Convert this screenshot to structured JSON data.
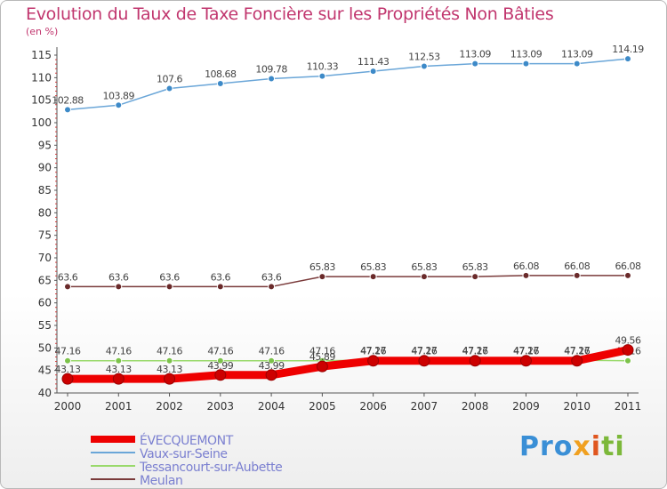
{
  "chart_data": {
    "type": "line",
    "title": "Evolution du Taux de Taxe Foncière sur les Propriétés Non Bâties",
    "ylabel": "(en %)",
    "xlabel": "",
    "categories": [
      "2000",
      "2001",
      "2002",
      "2003",
      "2004",
      "2005",
      "2006",
      "2007",
      "2008",
      "2009",
      "2010",
      "2011"
    ],
    "ylim": [
      40,
      115
    ],
    "yticks": [
      40,
      45,
      50,
      55,
      60,
      65,
      70,
      75,
      80,
      85,
      90,
      95,
      100,
      105,
      110,
      115
    ],
    "grid": false,
    "legend_position": "bottom-left",
    "series": [
      {
        "name": "Vaux-sur-Seine",
        "color": "#6aa6d8",
        "marker": "#3d8ac8",
        "values": [
          102.88,
          103.89,
          107.6,
          108.68,
          109.78,
          110.33,
          111.43,
          112.53,
          113.09,
          113.09,
          113.09,
          114.19
        ],
        "labels": [
          "102.88",
          "103.89",
          "107.6",
          "108.68",
          "109.78",
          "110.33",
          "111.43",
          "112.53",
          "113.09",
          "113.09",
          "113.09",
          "114.19"
        ]
      },
      {
        "name": "Meulan",
        "color": "#7a3a3a",
        "marker": "#6a2a2a",
        "values": [
          63.6,
          63.6,
          63.6,
          63.6,
          63.6,
          65.83,
          65.83,
          65.83,
          65.83,
          66.08,
          66.08,
          66.08
        ],
        "labels": [
          "63.6",
          "63.6",
          "63.6",
          "63.6",
          "63.6",
          "65.83",
          "65.83",
          "65.83",
          "65.83",
          "66.08",
          "66.08",
          "66.08"
        ]
      },
      {
        "name": "Tessancourt-sur-Aubette",
        "color": "#99d96b",
        "marker": "#7cc24a",
        "values": [
          47.16,
          47.16,
          47.16,
          47.16,
          47.16,
          47.16,
          47.27,
          47.27,
          47.27,
          47.27,
          47.27,
          47.16
        ],
        "labels": [
          "47.16",
          "47.16",
          "47.16",
          "47.16",
          "47.16",
          "47.16",
          "47.27",
          "47.27",
          "47.27",
          "47.27",
          "47.27",
          "47.16"
        ]
      },
      {
        "name": "ÉVECQUEMONT",
        "color": "#ee0000",
        "marker": "#cc0000",
        "values": [
          43.13,
          43.13,
          43.13,
          43.99,
          43.99,
          45.89,
          47.16,
          47.16,
          47.16,
          47.16,
          47.16,
          49.56
        ],
        "labels": [
          "43.13",
          "43.13",
          "43.13",
          "43.99",
          "43.99",
          "45.89",
          "47.16",
          "47.16",
          "47.16",
          "47.16",
          "47.16",
          "49.56"
        ]
      }
    ]
  },
  "legend": [
    {
      "name": "ÉVECQUEMONT",
      "color": "#ee0000",
      "thick": true
    },
    {
      "name": "Vaux-sur-Seine",
      "color": "#6aa6d8",
      "thick": false
    },
    {
      "name": "Tessancourt-sur-Aubette",
      "color": "#99d96b",
      "thick": false
    },
    {
      "name": "Meulan",
      "color": "#7a3a3a",
      "thick": false
    }
  ],
  "logo": {
    "part1": "Pro",
    "part2": "x",
    "part3": "i",
    "part4": "ti"
  }
}
